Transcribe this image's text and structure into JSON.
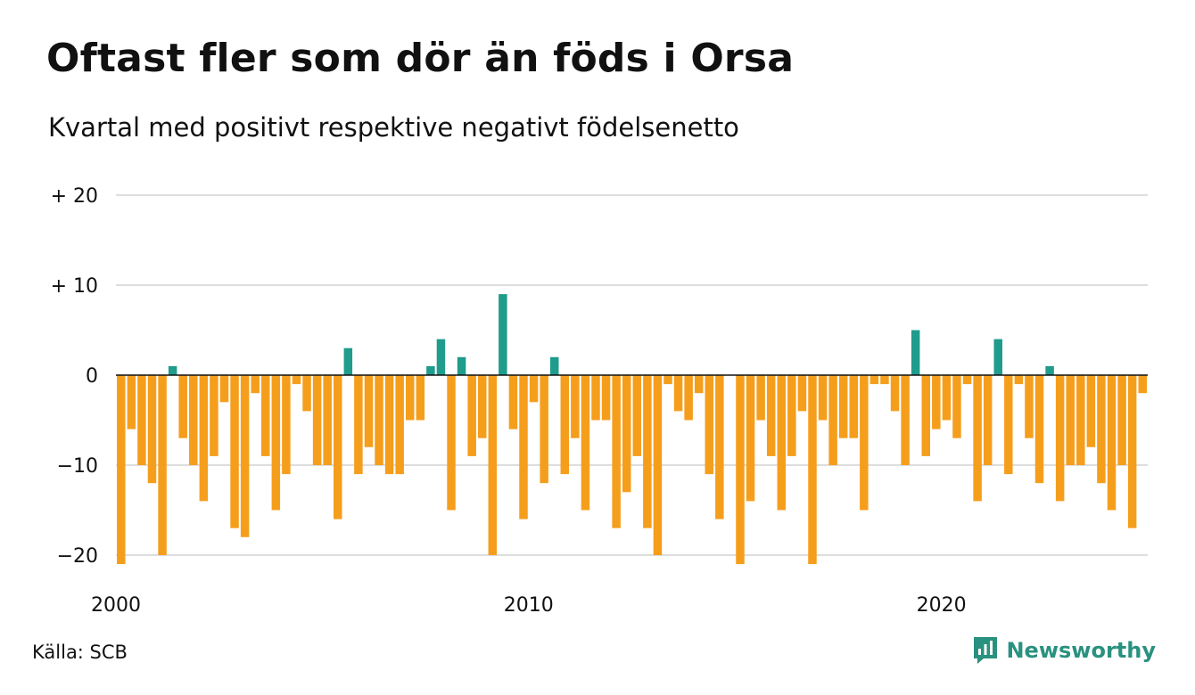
{
  "title": "Oftast fler som dör än föds i Orsa",
  "subtitle": "Kvartal med positivt respektive negativt födelsenetto",
  "source": "Källa: SCB",
  "brand": "Newsworthy",
  "colors": {
    "positive": "#1f9c8b",
    "negative": "#f59e1c",
    "grid": "#dddddd",
    "zero_line": "#111111",
    "brand": "#29917f"
  },
  "chart_data": {
    "type": "bar",
    "x_start": "2000 Q1",
    "ylim": [
      -22,
      20
    ],
    "y_ticks": [
      {
        "value": 20,
        "label": "+ 20"
      },
      {
        "value": 10,
        "label": "+ 10"
      },
      {
        "value": 0,
        "label": "0"
      },
      {
        "value": -10,
        "label": "−10"
      },
      {
        "value": -20,
        "label": "−20"
      }
    ],
    "x_ticks": [
      {
        "index": 0,
        "label": "2000"
      },
      {
        "index": 40,
        "label": "2010"
      },
      {
        "index": 80,
        "label": "2020"
      }
    ],
    "grid": true,
    "values": [
      -21,
      -6,
      -10,
      -12,
      -20,
      1,
      -7,
      -10,
      -14,
      -9,
      -3,
      -17,
      -18,
      -2,
      -9,
      -15,
      -11,
      -1,
      -4,
      -10,
      -10,
      -16,
      3,
      -11,
      -8,
      -10,
      -11,
      -11,
      -5,
      -5,
      1,
      4,
      -15,
      2,
      -9,
      -7,
      -20,
      9,
      -6,
      -16,
      -3,
      -12,
      2,
      -11,
      -7,
      -15,
      -5,
      -5,
      -17,
      -13,
      -9,
      -17,
      -20,
      -1,
      -4,
      -5,
      -2,
      -11,
      -16,
      0,
      -21,
      -14,
      -5,
      -9,
      -15,
      -9,
      -4,
      -21,
      -5,
      -10,
      -7,
      -7,
      -15,
      -1,
      -1,
      -4,
      -10,
      5,
      -9,
      -6,
      -5,
      -7,
      -1,
      -14,
      -10,
      4,
      -11,
      -1,
      -7,
      -12,
      1,
      -14,
      -10,
      -10,
      -8,
      -12,
      -15,
      -10,
      -17,
      -2
    ]
  }
}
